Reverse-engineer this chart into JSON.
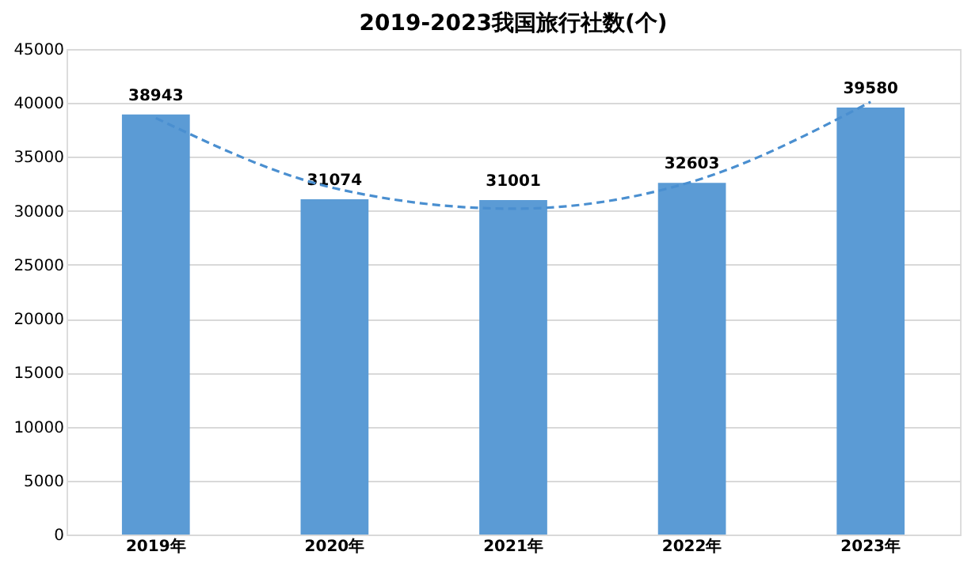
{
  "chart_data": {
    "type": "bar",
    "title": "2019-2023我国旅行社数(个)",
    "categories": [
      "2019年",
      "2020年",
      "2021年",
      "2022年",
      "2023年"
    ],
    "series": [
      {
        "color": "#5b9bd5",
        "values": [
          38943,
          31074,
          31001,
          32603,
          39580
        ],
        "value_labels": [
          "38943",
          "31074",
          "31001",
          "32603",
          "39580"
        ]
      },
      {
        "type": "line",
        "color": "#4a8fd0",
        "line_style": "dashed",
        "x": [
          "2019年",
          "2020年",
          "2021年",
          "2022年",
          "2023年"
        ],
        "values": [
          38600,
          32100,
          30200,
          32700,
          40100
        ]
      }
    ],
    "ylim": [
      0,
      45000
    ],
    "yticks": [
      0,
      5000,
      10000,
      15000,
      20000,
      25000,
      30000,
      35000,
      40000,
      45000
    ],
    "grid": "y"
  }
}
